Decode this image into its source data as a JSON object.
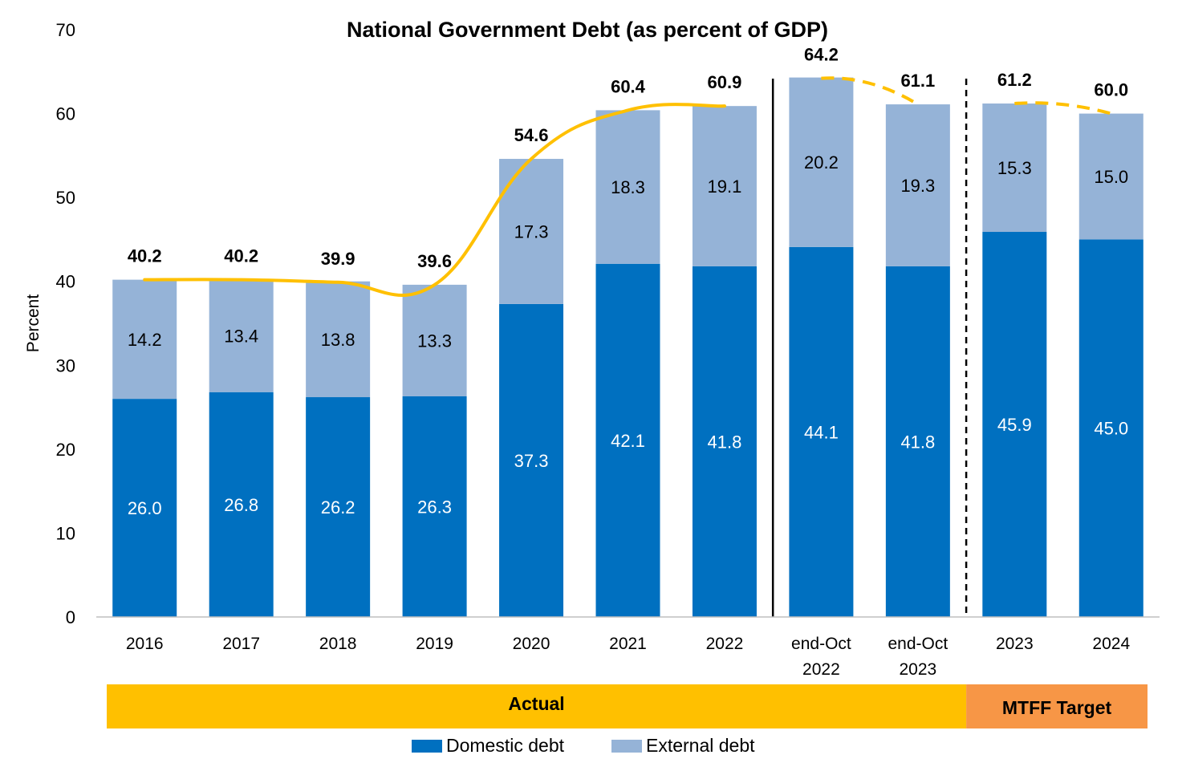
{
  "chart_data": {
    "type": "bar",
    "stacked": true,
    "title": "National Government Debt (as percent of GDP)",
    "ylabel": "Percent",
    "xlabel": "",
    "ylim": [
      0,
      70
    ],
    "yticks": [
      0,
      10,
      20,
      30,
      40,
      50,
      60,
      70
    ],
    "categories": [
      [
        "2016"
      ],
      [
        "2017"
      ],
      [
        "2018"
      ],
      [
        "2019"
      ],
      [
        "2020"
      ],
      [
        "2021"
      ],
      [
        "2022"
      ],
      [
        "end-Oct",
        "2022"
      ],
      [
        "end-Oct",
        "2023"
      ],
      [
        "2023"
      ],
      [
        "2024"
      ]
    ],
    "series": [
      {
        "name": "Domestic debt",
        "color": "#0070C0",
        "values": [
          26.0,
          26.8,
          26.2,
          26.3,
          37.3,
          42.1,
          41.8,
          44.1,
          41.8,
          45.9,
          45.0
        ],
        "labels": [
          "26.0",
          "26.8",
          "26.2",
          "26.3",
          "37.3",
          "42.1",
          "41.8",
          "44.1",
          "41.8",
          "45.9",
          "45.0"
        ]
      },
      {
        "name": "External debt",
        "color": "#95B3D7",
        "values": [
          14.2,
          13.4,
          13.8,
          13.3,
          17.3,
          18.3,
          19.1,
          20.2,
          19.3,
          15.3,
          15.0
        ],
        "labels": [
          "14.2",
          "13.4",
          "13.8",
          "13.3",
          "17.3",
          "18.3",
          "19.1",
          "20.2",
          "19.3",
          "15.3",
          "15.0"
        ]
      }
    ],
    "totals": [
      40.2,
      40.2,
      39.9,
      39.6,
      54.6,
      60.4,
      60.9,
      64.2,
      61.1,
      61.2,
      60.0
    ],
    "total_labels": [
      "40.2",
      "40.2",
      "39.9",
      "39.6",
      "54.6",
      "60.4",
      "60.9",
      "64.2",
      "61.1",
      "61.2",
      "60.0"
    ],
    "trend_line": {
      "color": "#FFC000",
      "solid_range": [
        0,
        6
      ],
      "dashed_segments": [
        [
          7,
          8
        ],
        [
          9,
          10
        ]
      ]
    },
    "separators": [
      {
        "after_index": 6,
        "style": "solid"
      },
      {
        "after_index": 8,
        "style": "dashed"
      }
    ],
    "bands": [
      {
        "label": "Actual",
        "from": 0,
        "to": 8,
        "color": "#FFC000"
      },
      {
        "label": "MTFF Target",
        "from": 9,
        "to": 10,
        "color": "#F79646"
      }
    ],
    "legend": {
      "placement": "bottom",
      "entries": [
        {
          "label": "Domestic debt",
          "color": "#0070C0"
        },
        {
          "label": "External debt",
          "color": "#95B3D7"
        }
      ]
    }
  }
}
